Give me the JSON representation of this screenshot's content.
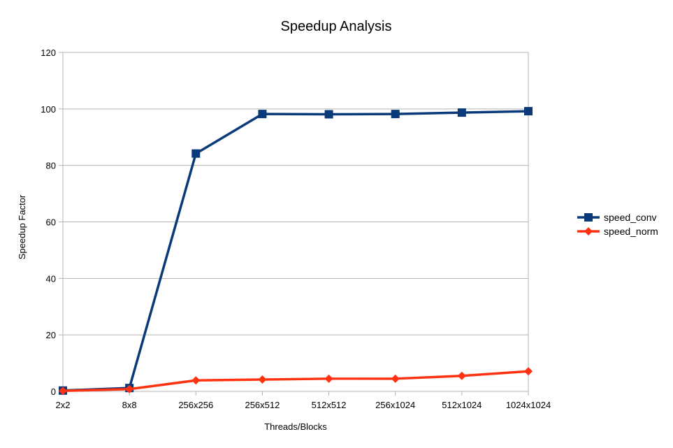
{
  "chart_data": {
    "type": "line",
    "title": "Speedup Analysis",
    "xlabel": "Threads/Blocks",
    "ylabel": "Speedup Factor",
    "categories": [
      "2x2",
      "8x8",
      "256x256",
      "256x512",
      "512x512",
      "256x1024",
      "512x1024",
      "1024x1024"
    ],
    "ylim": [
      0,
      120
    ],
    "yticks": [
      0,
      20,
      40,
      60,
      80,
      100,
      120
    ],
    "grid": "horizontal",
    "legend_position": "right",
    "series": [
      {
        "name": "speed_conv",
        "color": "#0a3a7a",
        "marker": "square",
        "values": [
          0.3,
          1.2,
          84.2,
          98.2,
          98.1,
          98.2,
          98.7,
          99.2
        ]
      },
      {
        "name": "speed_norm",
        "color": "#ff3311",
        "marker": "diamond",
        "values": [
          0.2,
          0.8,
          3.9,
          4.2,
          4.5,
          4.5,
          5.5,
          7.1
        ]
      }
    ]
  }
}
